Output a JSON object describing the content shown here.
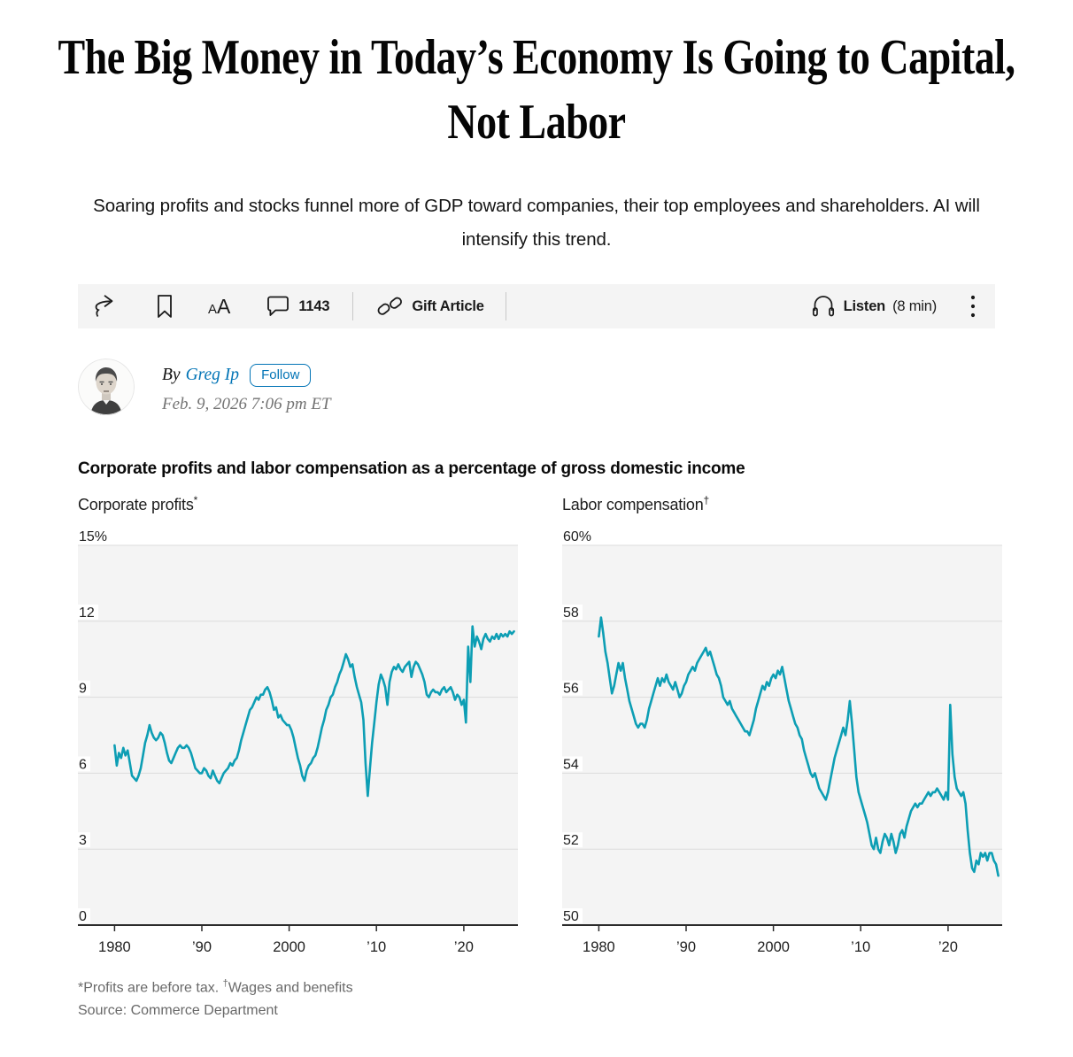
{
  "article": {
    "headline": "The Big Money in Today’s Economy Is Going to Capital, Not Labor",
    "subhead": "Soaring profits and stocks funnel more of GDP toward companies, their top employees and shareholders. AI will intensify this trend.",
    "byline_prefix": "By",
    "author": "Greg Ip",
    "follow_label": "Follow",
    "date": "Feb. 9, 2026 7:06 pm ET"
  },
  "toolbar": {
    "comment_count": "1143",
    "gift_label": "Gift Article",
    "listen_label": "Listen",
    "listen_duration": "(8 min)",
    "text_size_small": "A",
    "text_size_large": "A"
  },
  "chart": {
    "title": "Corporate profits and labor compensation as a percentage of gross domestic income",
    "footnote_prefix": "*Profits are before tax. ",
    "footnote_dagger": "†",
    "footnote_suffix": "Wages and benefits",
    "source": "Source: Commerce Department",
    "line_color": "#0d9eb4",
    "plot_bg": "#f4f4f4",
    "grid_color": "#dcdcdc",
    "axis_color": "#2b2b2b"
  },
  "chart_data": [
    {
      "type": "line",
      "panel_label": "Corporate profits",
      "panel_marker": "*",
      "x_start": 1980,
      "x_step": 0.25,
      "xlim": [
        1975.8,
        2026.2
      ],
      "ylim": [
        0,
        15
      ],
      "yticks": [
        0,
        3,
        6,
        9,
        12,
        15
      ],
      "ytick_labels": [
        "0",
        "3",
        "6",
        "9",
        "12",
        "15%"
      ],
      "xticks": [
        1980,
        1990,
        2000,
        2010,
        2020
      ],
      "xtick_labels": [
        "1980",
        "’90",
        "2000",
        "’10",
        "’20"
      ],
      "grid": true,
      "legend": "none",
      "values": [
        7.1,
        6.3,
        6.8,
        6.6,
        7.0,
        6.7,
        6.9,
        6.4,
        5.9,
        5.8,
        5.7,
        5.9,
        6.2,
        6.7,
        7.2,
        7.5,
        7.9,
        7.6,
        7.4,
        7.3,
        7.4,
        7.6,
        7.5,
        7.2,
        6.8,
        6.5,
        6.4,
        6.6,
        6.8,
        7.0,
        7.1,
        7.0,
        7.0,
        7.1,
        7.0,
        6.8,
        6.5,
        6.2,
        6.1,
        6.0,
        6.0,
        6.2,
        6.1,
        5.9,
        5.8,
        6.1,
        5.9,
        5.7,
        5.6,
        5.8,
        6.0,
        6.1,
        6.2,
        6.4,
        6.3,
        6.5,
        6.6,
        6.9,
        7.3,
        7.6,
        7.9,
        8.2,
        8.5,
        8.6,
        8.8,
        9.0,
        8.9,
        9.1,
        9.1,
        9.3,
        9.4,
        9.2,
        8.9,
        8.5,
        8.6,
        8.2,
        8.3,
        8.1,
        8.0,
        7.9,
        7.9,
        7.7,
        7.4,
        7.0,
        6.6,
        6.3,
        5.9,
        5.7,
        6.1,
        6.3,
        6.4,
        6.6,
        6.7,
        7.0,
        7.4,
        7.8,
        8.1,
        8.5,
        8.7,
        9.0,
        9.1,
        9.4,
        9.6,
        9.9,
        10.1,
        10.4,
        10.7,
        10.5,
        10.2,
        10.3,
        9.8,
        9.4,
        9.1,
        8.8,
        8.1,
        6.4,
        5.1,
        6.2,
        7.2,
        8.0,
        8.8,
        9.5,
        9.9,
        9.7,
        9.4,
        8.7,
        9.6,
        10.0,
        10.2,
        10.1,
        10.3,
        10.1,
        10.0,
        10.2,
        10.3,
        10.4,
        9.8,
        10.2,
        10.4,
        10.3,
        10.1,
        9.9,
        9.6,
        9.1,
        9.0,
        9.2,
        9.3,
        9.2,
        9.2,
        9.1,
        9.3,
        9.4,
        9.2,
        9.3,
        9.4,
        9.2,
        8.9,
        9.1,
        9.0,
        8.7,
        8.9,
        8.0,
        11.0,
        9.6,
        11.8,
        11.0,
        11.4,
        11.2,
        10.9,
        11.3,
        11.5,
        11.3,
        11.2,
        11.4,
        11.3,
        11.5,
        11.3,
        11.5,
        11.4,
        11.5,
        11.4,
        11.6,
        11.5,
        11.6
      ]
    },
    {
      "type": "line",
      "panel_label": "Labor compensation",
      "panel_marker": "†",
      "x_start": 1980,
      "x_step": 0.25,
      "xlim": [
        1975.8,
        2026.2
      ],
      "ylim": [
        50,
        60
      ],
      "yticks": [
        50,
        52,
        54,
        56,
        58,
        60
      ],
      "ytick_labels": [
        "50",
        "52",
        "54",
        "56",
        "58",
        "60%"
      ],
      "xticks": [
        1980,
        1990,
        2000,
        2010,
        2020
      ],
      "xtick_labels": [
        "1980",
        "’90",
        "2000",
        "’10",
        "’20"
      ],
      "grid": true,
      "legend": "none",
      "values": [
        57.6,
        58.1,
        57.7,
        57.2,
        56.9,
        56.5,
        56.1,
        56.3,
        56.6,
        56.9,
        56.7,
        56.9,
        56.5,
        56.2,
        55.9,
        55.7,
        55.5,
        55.3,
        55.2,
        55.3,
        55.3,
        55.2,
        55.4,
        55.7,
        55.9,
        56.1,
        56.3,
        56.5,
        56.3,
        56.5,
        56.4,
        56.6,
        56.4,
        56.3,
        56.2,
        56.4,
        56.2,
        56.0,
        56.1,
        56.3,
        56.4,
        56.6,
        56.7,
        56.8,
        56.7,
        56.9,
        57.0,
        57.1,
        57.2,
        57.3,
        57.1,
        57.2,
        57.0,
        56.8,
        56.6,
        56.5,
        56.3,
        56.0,
        55.9,
        55.8,
        55.9,
        55.7,
        55.6,
        55.5,
        55.4,
        55.3,
        55.2,
        55.1,
        55.1,
        55.0,
        55.2,
        55.4,
        55.7,
        55.9,
        56.1,
        56.3,
        56.2,
        56.4,
        56.3,
        56.5,
        56.6,
        56.5,
        56.7,
        56.6,
        56.8,
        56.5,
        56.2,
        55.9,
        55.7,
        55.5,
        55.3,
        55.2,
        55.0,
        54.9,
        54.6,
        54.4,
        54.2,
        54.0,
        53.9,
        54.0,
        53.8,
        53.6,
        53.5,
        53.4,
        53.3,
        53.5,
        53.8,
        54.1,
        54.4,
        54.6,
        54.8,
        55.0,
        55.2,
        55.0,
        55.4,
        55.9,
        55.3,
        54.6,
        53.9,
        53.5,
        53.3,
        53.1,
        52.9,
        52.7,
        52.4,
        52.1,
        52.0,
        52.3,
        52.0,
        51.9,
        52.2,
        52.4,
        52.3,
        52.1,
        52.4,
        52.2,
        51.9,
        52.1,
        52.4,
        52.5,
        52.3,
        52.6,
        52.8,
        53.0,
        53.1,
        53.2,
        53.1,
        53.2,
        53.2,
        53.3,
        53.4,
        53.5,
        53.4,
        53.5,
        53.5,
        53.6,
        53.5,
        53.4,
        53.3,
        53.5,
        53.3,
        55.8,
        54.5,
        53.9,
        53.6,
        53.5,
        53.4,
        53.5,
        53.2,
        52.5,
        51.9,
        51.5,
        51.4,
        51.7,
        51.6,
        51.9,
        51.8,
        51.9,
        51.7,
        51.9,
        51.9,
        51.7,
        51.6,
        51.3
      ]
    }
  ]
}
